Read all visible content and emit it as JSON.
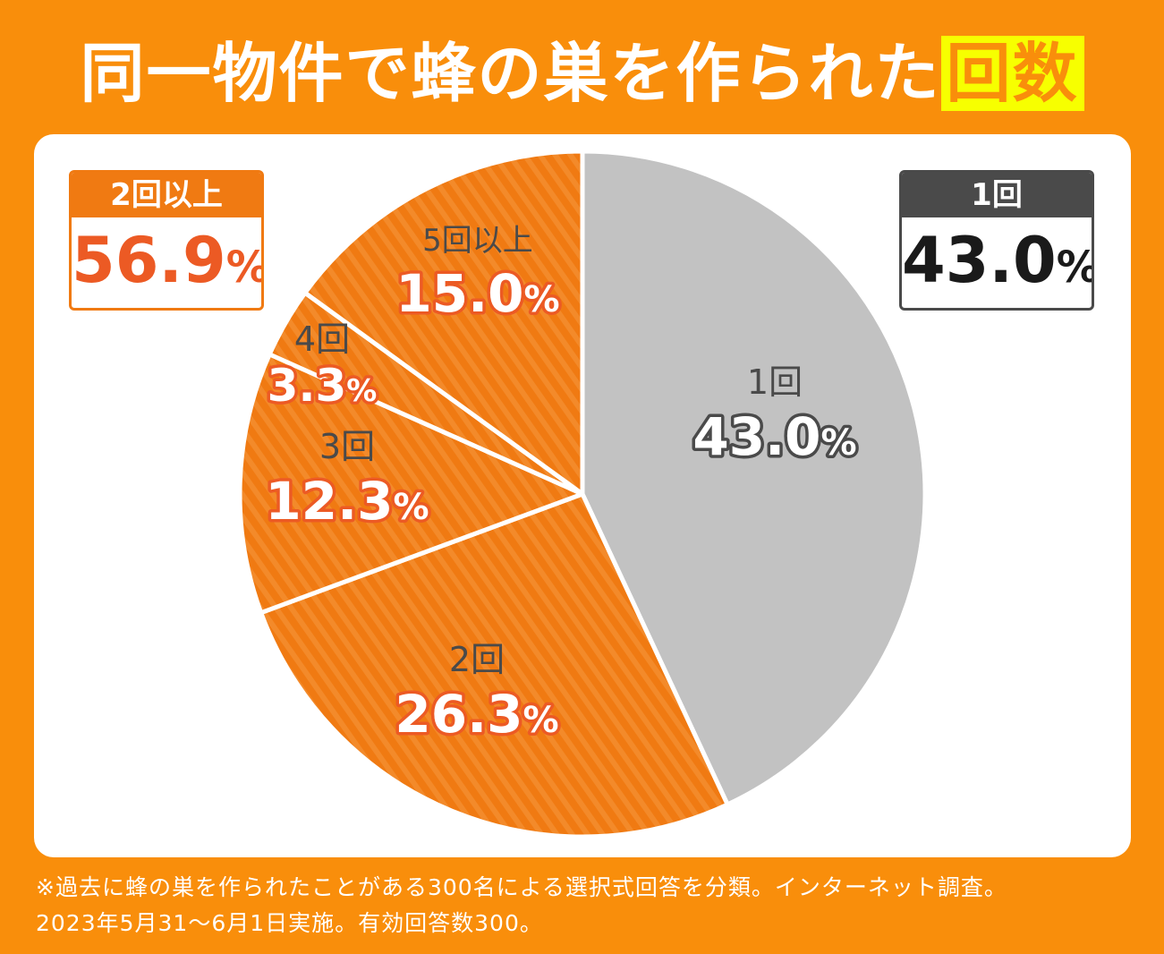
{
  "title": {
    "main": "同一物件で蜂の巣を作られた",
    "highlight": "回数"
  },
  "summary": {
    "left": {
      "label": "2回以上",
      "value": "56.9",
      "unit": "%"
    },
    "right": {
      "label": "1回",
      "value": "43.0",
      "unit": "%"
    }
  },
  "chart_data": {
    "type": "pie",
    "title": "同一物件で蜂の巣を作られた回数",
    "slices": [
      {
        "label": "1回",
        "value": 43.0,
        "display": "43.0",
        "color": "#c2c2c2"
      },
      {
        "label": "2回",
        "value": 26.3,
        "display": "26.3",
        "color": "#f07a12"
      },
      {
        "label": "3回",
        "value": 12.3,
        "display": "12.3",
        "color": "#f07a12"
      },
      {
        "label": "4回",
        "value": 3.3,
        "display": "3.3",
        "color": "#f07a12"
      },
      {
        "label": "5回以上",
        "value": 15.0,
        "display": "15.0",
        "color": "#f07a12"
      }
    ],
    "unit": "%",
    "start": "12 o'clock",
    "direction": "clockwise"
  },
  "colors": {
    "background": "#f98e0b",
    "orange_slice": "#f07a12",
    "gray_slice": "#c2c2c2",
    "value_red": "#ec5a24",
    "dark": "#4a4a4a",
    "highlight": "#f7ff00"
  },
  "footnote": {
    "line1": "※過去に蜂の巣を作られたことがある300名による選択式回答を分類。インターネット調査。",
    "line2": "2023年5月31～6月1日実施。有効回答数300。"
  }
}
